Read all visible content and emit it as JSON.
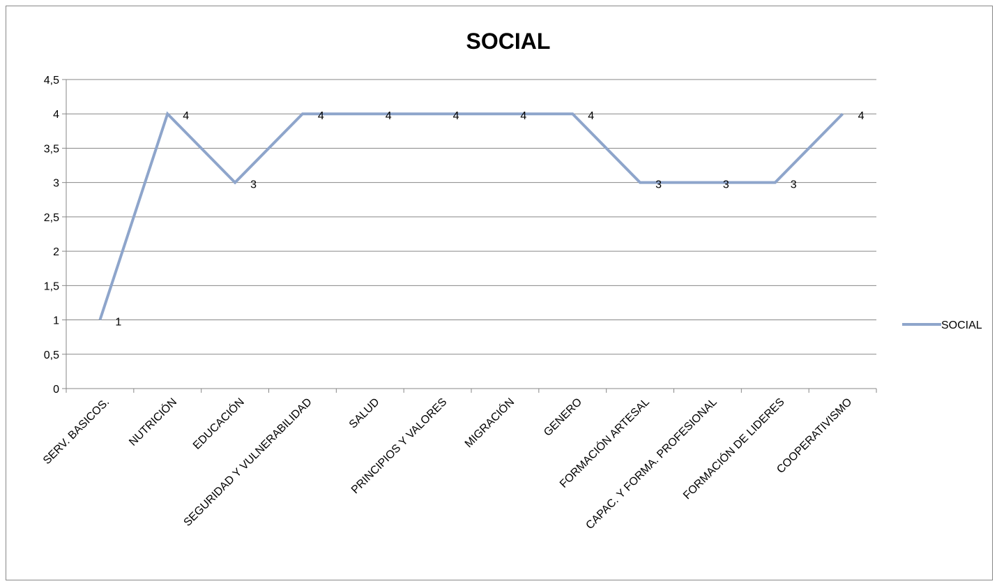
{
  "chart_data": {
    "type": "line",
    "title": "SOCIAL",
    "xlabel": "",
    "ylabel": "",
    "categories": [
      "SERV. BASICOS.",
      "NUTRICIÓN",
      "EDUCACIÓN",
      "SEGURIDAD Y VULNERABILIDAD",
      "SALUD",
      "PRINCIPIOS Y VALORES",
      "MIGRACIÓN",
      "GENERO",
      "FORMACIÓN ARTESAL",
      "CAPAC. Y FORMA. PROFESIONAL",
      "FORMACIÓN DE LIDERES",
      "COOPERATIVISMO"
    ],
    "series": [
      {
        "name": "SOCIAL",
        "values": [
          1,
          4,
          3,
          4,
          4,
          4,
          4,
          4,
          3,
          3,
          3,
          4
        ],
        "data_labels": [
          "1",
          "4",
          "3",
          "4",
          "4",
          "4",
          "4",
          "4",
          "3",
          "3",
          "3",
          "4"
        ]
      }
    ],
    "y_ticks": [
      "0",
      "0,5",
      "1",
      "1,5",
      "2",
      "2,5",
      "3",
      "3,5",
      "4",
      "4,5"
    ],
    "ylim": [
      0,
      4.5
    ],
    "grid": true,
    "legend": "right",
    "colors": {
      "line": "#8EA5CB",
      "grid": "#878787",
      "axis": "#878787",
      "text": "#000000"
    }
  }
}
